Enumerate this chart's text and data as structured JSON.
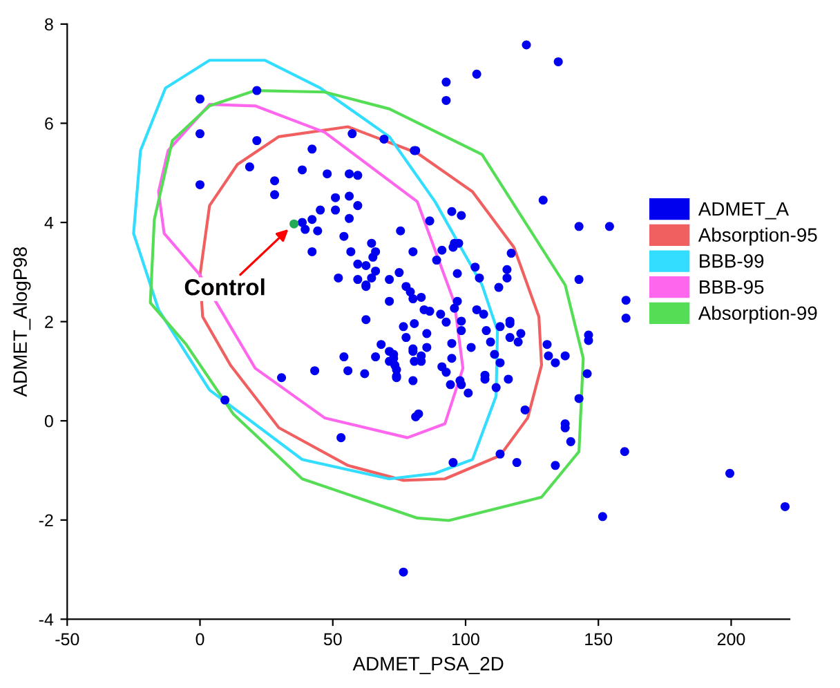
{
  "chart_data": {
    "type": "scatter",
    "xlabel": "ADMET_PSA_2D",
    "ylabel": "ADMET_AlogP98",
    "xlim": [
      -50,
      222
    ],
    "xticks": [
      -50,
      0,
      50,
      100,
      150,
      200
    ],
    "ylim": [
      -4,
      8
    ],
    "yticks": [
      -4,
      -2,
      0,
      2,
      4,
      6,
      8
    ],
    "grid": false,
    "legend": "right",
    "marker": "circle",
    "line_style": "solid",
    "series": [
      {
        "name": "ADMET_A",
        "type": "scatter",
        "color": "#0000ee",
        "x": [
          0,
          21.4,
          0,
          21.4,
          57.3,
          69.3,
          80.7,
          42.2,
          18.7,
          38.5,
          47.9,
          0,
          28.1,
          28.1,
          56.2,
          59.4,
          51.0,
          56.2,
          59.4,
          45.3,
          51.0,
          42.2,
          38.5,
          39.6,
          44.3,
          56.2,
          75.5,
          54.2,
          64.6,
          66.1,
          65.1,
          42.2,
          56.8,
          80.2,
          59.4,
          62.5,
          66.1,
          75.0,
          52.1,
          59.4,
          64.6,
          71.3,
          62.5,
          77.6,
          79.2,
          122.9,
          134.9,
          104.2,
          92.7,
          92.7,
          81.2,
          129.2,
          142.7,
          154.2,
          86.5,
          94.8,
          98.4,
          95.8,
          97.4,
          95.3,
          91.1,
          117.2,
          89.1,
          103.6,
          115.6,
          96.9,
          105.2,
          115.6,
          142.7,
          112.5,
          83.3,
          80.2,
          96.9,
          160.4,
          160.4,
          146.3,
          146.3,
          145.8,
          142.7,
          137.5,
          137.5,
          139.6,
          133.8,
          122.4,
          113.0,
          119.3,
          95.3,
          159.9,
          199.5,
          220.3,
          151.6,
          76.6,
          130.7,
          131.2,
          133.8,
          137.5,
          116.7,
          120.8,
          119.8,
          116.7,
          113.0,
          116.7,
          109.4,
          107.8,
          104.2,
          106.8,
          110.9,
          113.0,
          116.1,
          111.5,
          107.3,
          107.3,
          101.0,
          97.9,
          98.4,
          94.3,
          102.1,
          98.4,
          98.4,
          94.8,
          94.8,
          91.1,
          92.7,
          90.6,
          95.8,
          92.7,
          86.5,
          84.4,
          85.4,
          85.4,
          80.7,
          76.6,
          77.6,
          72.9,
          80.2,
          80.7,
          83.3,
          83.3,
          73.4,
          74.0,
          80.2,
          82.3,
          81.2,
          62.5,
          71.3,
          62.5,
          68.2,
          80.2,
          66.1,
          71.3,
          72.9,
          71.3,
          74.0,
          74.0,
          54.2,
          55.7,
          62.0,
          43.2,
          30.7,
          9.4,
          53.1
        ],
        "values": [
          6.49,
          6.66,
          5.79,
          5.65,
          5.79,
          5.68,
          5.45,
          5.48,
          5.12,
          5.06,
          4.98,
          4.76,
          4.84,
          4.56,
          4.98,
          4.95,
          4.5,
          4.53,
          4.34,
          4.25,
          4.25,
          4.06,
          4.0,
          3.86,
          3.83,
          4.08,
          3.83,
          3.72,
          3.58,
          3.41,
          3.3,
          3.41,
          3.41,
          3.41,
          3.16,
          3.13,
          3.02,
          2.99,
          2.88,
          2.85,
          2.88,
          2.85,
          2.71,
          2.71,
          2.6,
          7.58,
          7.24,
          6.99,
          6.83,
          6.46,
          5.45,
          4.45,
          3.92,
          3.92,
          4.03,
          4.22,
          4.14,
          3.58,
          3.58,
          3.5,
          3.44,
          3.38,
          3.24,
          3.1,
          3.05,
          2.97,
          2.88,
          2.88,
          2.85,
          2.69,
          2.49,
          2.46,
          2.41,
          2.43,
          2.07,
          1.73,
          1.62,
          0.95,
          0.45,
          -0.06,
          -0.14,
          -0.42,
          -0.9,
          0.22,
          -0.67,
          -0.84,
          -0.84,
          -0.62,
          -1.06,
          -1.73,
          -1.93,
          -3.05,
          1.54,
          1.31,
          1.17,
          1.31,
          1.96,
          1.76,
          1.59,
          1.68,
          1.9,
          2.01,
          1.59,
          1.82,
          2.24,
          2.15,
          1.34,
          1.17,
          0.84,
          0.67,
          0.92,
          0.84,
          0.56,
          0.81,
          0.73,
          0.73,
          1.48,
          1.82,
          2.01,
          1.56,
          1.26,
          1.09,
          0.98,
          2.15,
          2.27,
          1.99,
          2.21,
          2.24,
          1.76,
          1.48,
          1.96,
          1.9,
          1.68,
          1.34,
          1.45,
          1.2,
          1.2,
          1.31,
          1.12,
          0.9,
          0.81,
          0.14,
          0.08,
          2.74,
          2.41,
          2.04,
          1.54,
          1.4,
          1.29,
          1.4,
          1.26,
          1.2,
          1.03,
          0.87,
          1.29,
          1.01,
          0.95,
          1.01,
          0.87,
          0.42,
          -0.34
        ]
      },
      {
        "name": "Absorption-95",
        "type": "other",
        "color": "#f06060"
      },
      {
        "name": "BBB-99",
        "type": "other",
        "color": "#33ddff"
      },
      {
        "name": "BBB-95",
        "type": "other",
        "color": "#ff66ee"
      },
      {
        "name": "Absorption-99",
        "type": "other",
        "color": "#55dd55"
      },
      {
        "name": "Control",
        "color": "#22aa55",
        "x": [
          35.4
        ],
        "values": [
          3.97
        ]
      }
    ]
  }
}
